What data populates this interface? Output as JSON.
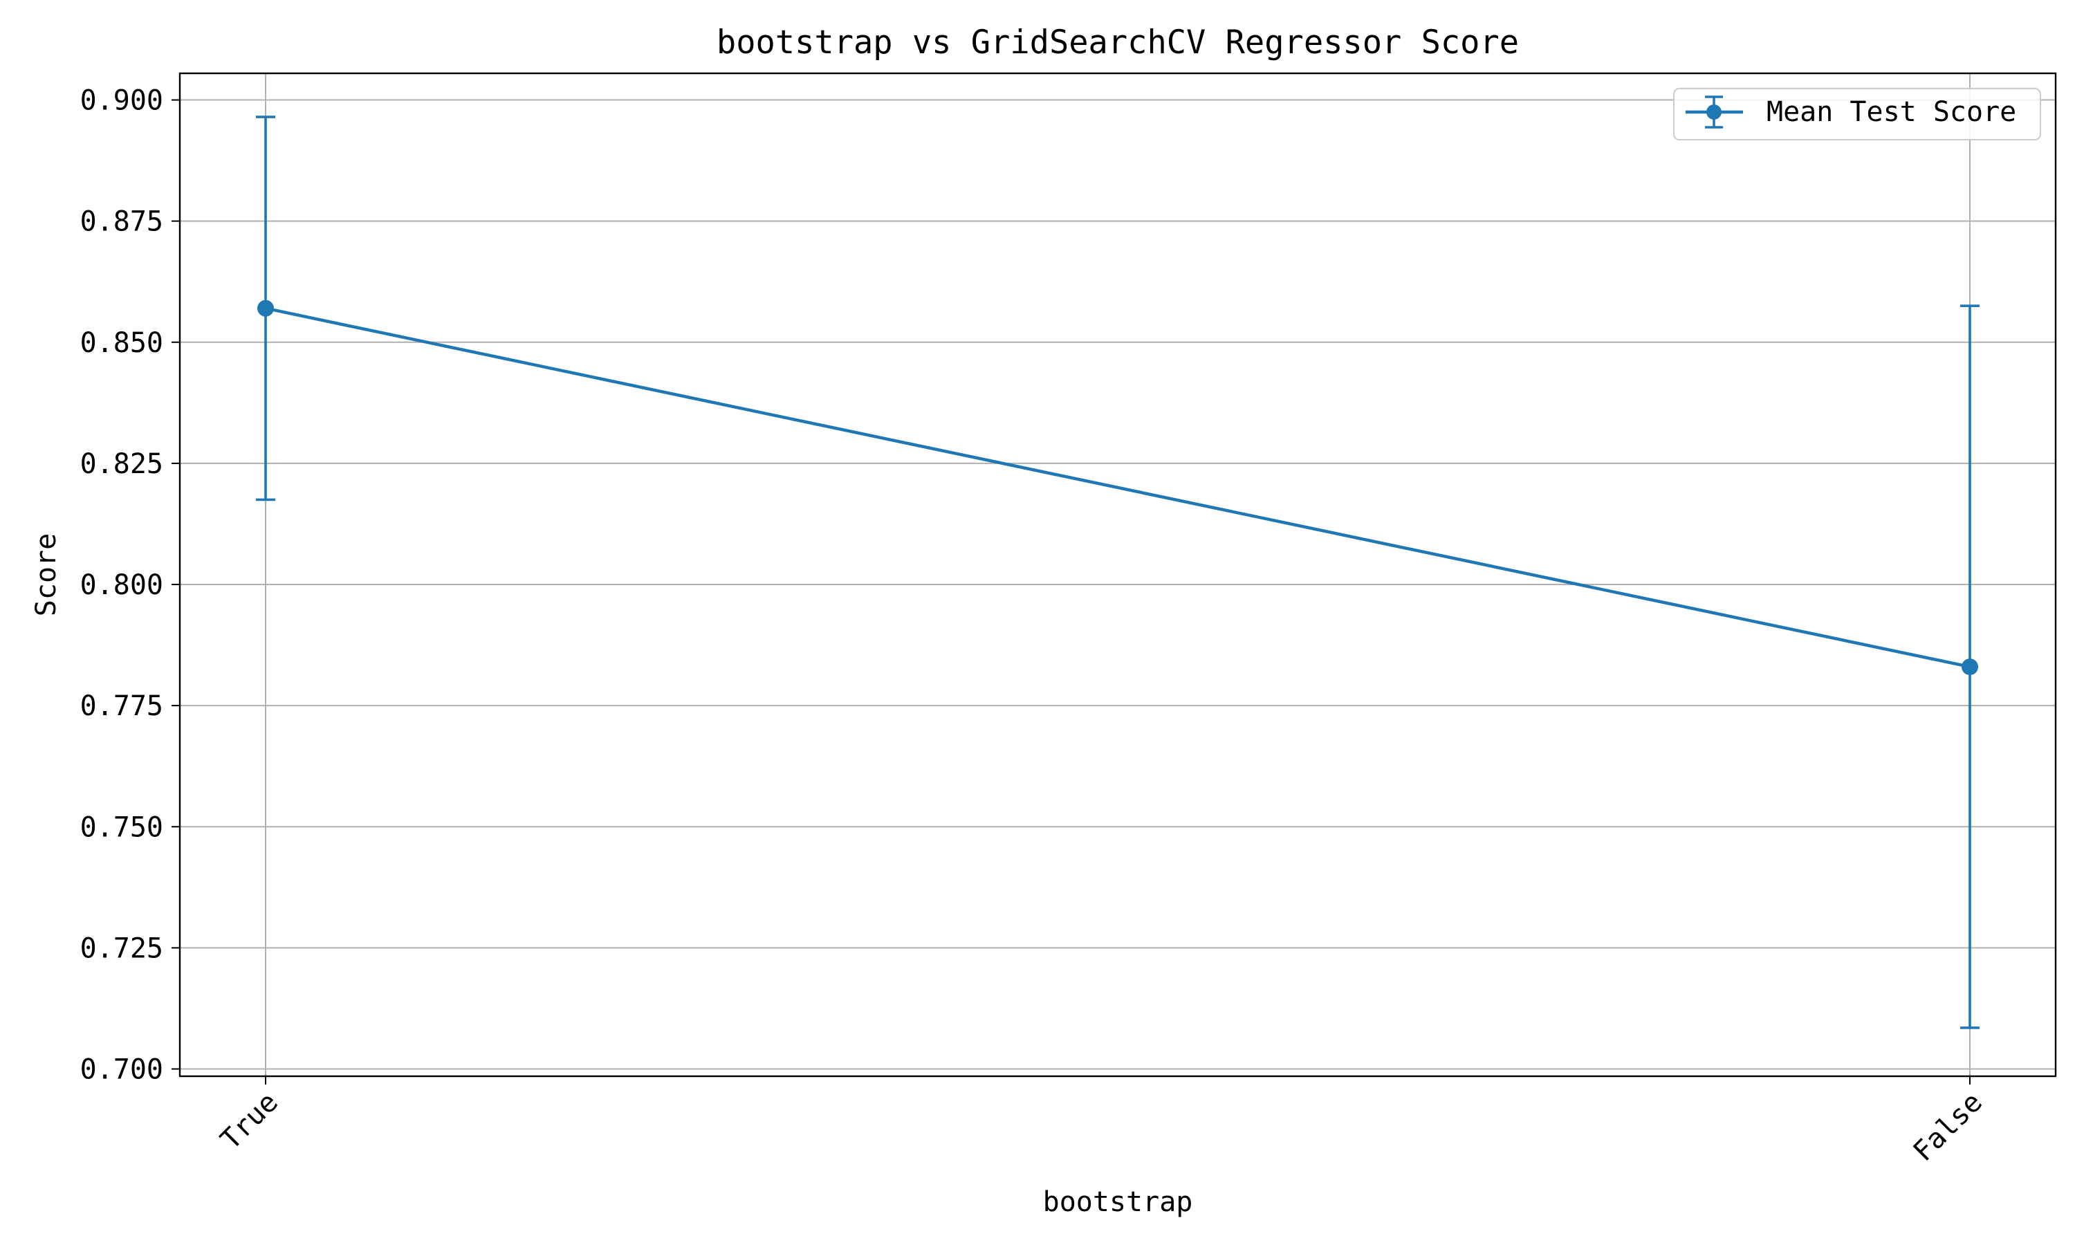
{
  "chart_data": {
    "type": "line",
    "title": "bootstrap vs GridSearchCV Regressor Score",
    "xlabel": "bootstrap",
    "ylabel": "Score",
    "categories": [
      "True",
      "False"
    ],
    "series": [
      {
        "name": "Mean Test Score",
        "values": [
          0.857,
          0.783
        ],
        "error": [
          0.0395,
          0.0745
        ]
      }
    ],
    "ylim": [
      0.6985,
      0.9055
    ],
    "yticks": [
      0.7,
      0.725,
      0.75,
      0.775,
      0.8,
      0.825,
      0.85,
      0.875,
      0.9
    ],
    "ytick_labels": [
      "0.700",
      "0.725",
      "0.750",
      "0.775",
      "0.800",
      "0.825",
      "0.850",
      "0.875",
      "0.900"
    ],
    "grid": true,
    "legend_position": "top-right",
    "colors": {
      "series": "#1f77b4",
      "grid": "#b0b0b0",
      "axes": "#000000"
    }
  }
}
